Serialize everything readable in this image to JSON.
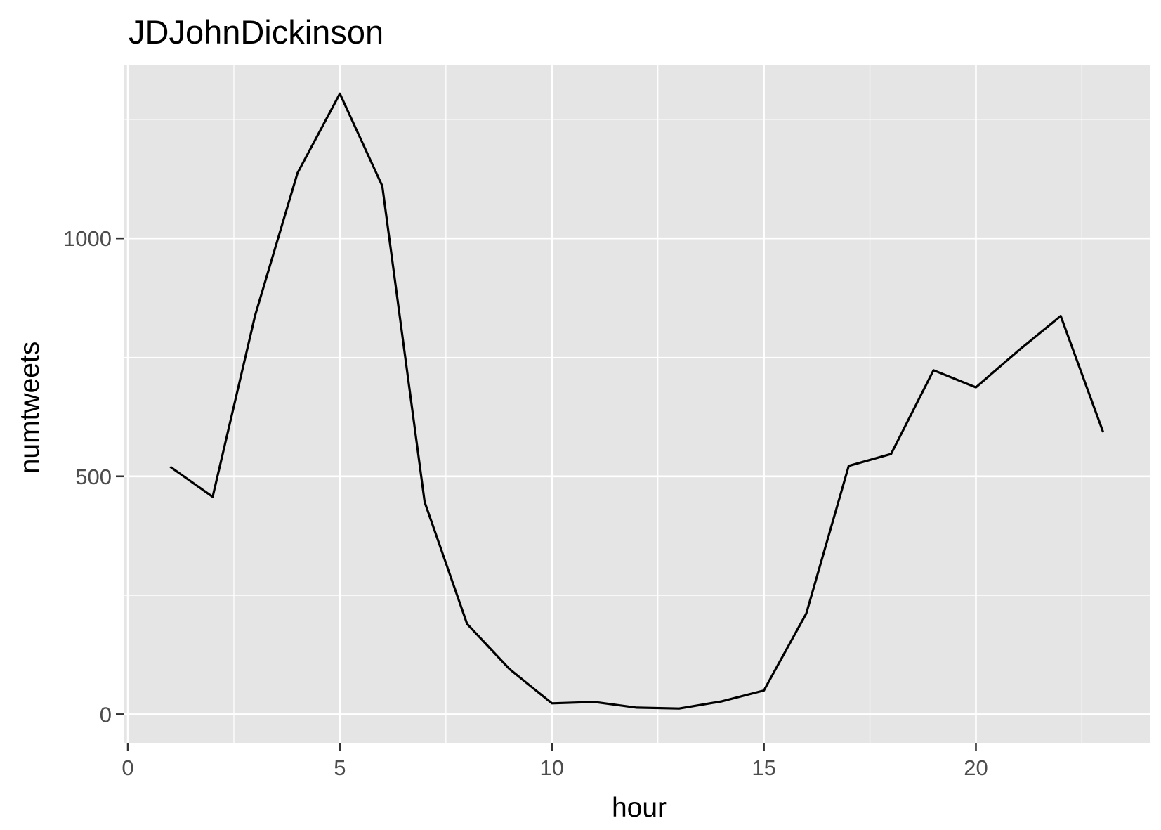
{
  "chart_data": {
    "type": "line",
    "title": "JDJohnDickinson",
    "xlabel": "hour",
    "ylabel": "numtweets",
    "x": [
      1,
      2,
      3,
      4,
      5,
      6,
      7,
      8,
      9,
      10,
      11,
      12,
      13,
      14,
      15,
      16,
      17,
      18,
      19,
      20,
      21,
      22,
      23
    ],
    "series": [
      {
        "values": [
          520,
          457,
          838,
          1137,
          1304,
          1110,
          446,
          190,
          95,
          23,
          26,
          14,
          12,
          27,
          50,
          212,
          522,
          547,
          723,
          687,
          764,
          837,
          593
        ],
        "color": "#000000"
      }
    ],
    "xlim": [
      -0.1,
      24.1
    ],
    "ylim": [
      -60,
      1365
    ],
    "x_ticks": [
      0,
      5,
      10,
      15,
      20
    ],
    "x_tick_labels": [
      "0",
      "5",
      "10",
      "15",
      "20"
    ],
    "x_minor_ticks": [
      2.5,
      7.5,
      12.5,
      17.5,
      22.5
    ],
    "y_ticks": [
      0,
      500,
      1000
    ],
    "y_tick_labels": [
      "0",
      "500",
      "1000"
    ],
    "y_minor_ticks": [
      250,
      750,
      1250
    ],
    "grid": true,
    "legend": "none",
    "colors": {
      "panel_background": "#E5E5E5",
      "gridline": "#FFFFFF",
      "tick_label": "#4D4D4D",
      "axis_tick": "#333333",
      "text": "#000000"
    }
  }
}
